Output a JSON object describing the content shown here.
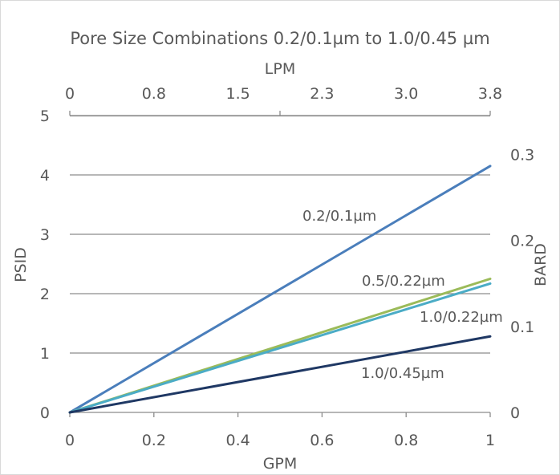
{
  "chart_data": {
    "type": "line",
    "title": "Pore Size Combinations 0.2/0.1µm to 1.0/0.45 µm",
    "xlabel": "GPM",
    "ylabel": "PSID",
    "x2label": "LPM",
    "y2label": "BARD",
    "xlim": [
      0,
      1
    ],
    "ylim": [
      0,
      5
    ],
    "y2lim": [
      0,
      0.345
    ],
    "x_ticks": [
      "0",
      "0.2",
      "0.4",
      "0.6",
      "0.8",
      "1"
    ],
    "y_ticks": [
      "0",
      "1",
      "2",
      "3",
      "4",
      "5"
    ],
    "x2_ticks": [
      "0",
      "0.8",
      "1.5",
      "2.3",
      "3.0",
      "3.8"
    ],
    "y2_ticks": [
      "0",
      "0.1",
      "0.2",
      "0.3"
    ],
    "grid": "horizontal",
    "legend": "none",
    "series": [
      {
        "name": "0.2/0.1µm",
        "x": [
          0,
          1
        ],
        "y": [
          0,
          4.15
        ],
        "color": "#4a7ebb"
      },
      {
        "name": "0.5/0.22µm",
        "x": [
          0,
          1
        ],
        "y": [
          0,
          2.25
        ],
        "color": "#9bbb59"
      },
      {
        "name": "1.0/0.22µm",
        "x": [
          0,
          1
        ],
        "y": [
          0,
          2.17
        ],
        "color": "#4bacc6"
      },
      {
        "name": "1.0/0.45µm",
        "x": [
          0,
          1
        ],
        "y": [
          0,
          1.28
        ],
        "color": "#1f3864"
      }
    ]
  }
}
